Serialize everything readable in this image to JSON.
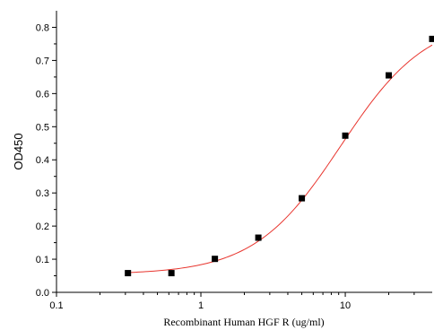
{
  "chart_data": {
    "type": "scatter",
    "title": "",
    "xlabel": "Recombinant Human HGF R (ug/ml)",
    "ylabel": "OD450",
    "x_scale": "log",
    "xlim": [
      0.1,
      40
    ],
    "ylim": [
      0.0,
      0.85
    ],
    "x_ticks": [
      {
        "value": 0.1,
        "label": "0.1"
      },
      {
        "value": 1,
        "label": "1"
      },
      {
        "value": 10,
        "label": "10"
      }
    ],
    "y_ticks": [
      {
        "value": 0.0,
        "label": "0.0"
      },
      {
        "value": 0.1,
        "label": "0.1"
      },
      {
        "value": 0.2,
        "label": "0.2"
      },
      {
        "value": 0.3,
        "label": "0.3"
      },
      {
        "value": 0.4,
        "label": "0.4"
      },
      {
        "value": 0.5,
        "label": "0.5"
      },
      {
        "value": 0.6,
        "label": "0.6"
      },
      {
        "value": 0.7,
        "label": "0.7"
      },
      {
        "value": 0.8,
        "label": "0.8"
      }
    ],
    "grid": false,
    "series": [
      {
        "marker": "square",
        "color": "#000000",
        "points": [
          {
            "x": 0.3125,
            "y": 0.058
          },
          {
            "x": 0.625,
            "y": 0.058
          },
          {
            "x": 1.25,
            "y": 0.101
          },
          {
            "x": 2.5,
            "y": 0.165
          },
          {
            "x": 5,
            "y": 0.284
          },
          {
            "x": 10,
            "y": 0.473
          },
          {
            "x": 20,
            "y": 0.655
          },
          {
            "x": 40,
            "y": 0.765
          }
        ]
      }
    ],
    "fit_curve": {
      "color": "#e8352e",
      "model": "4PL",
      "bottom": 0.054,
      "top": 0.83,
      "ec50": 9.3,
      "hill": 1.45
    }
  }
}
